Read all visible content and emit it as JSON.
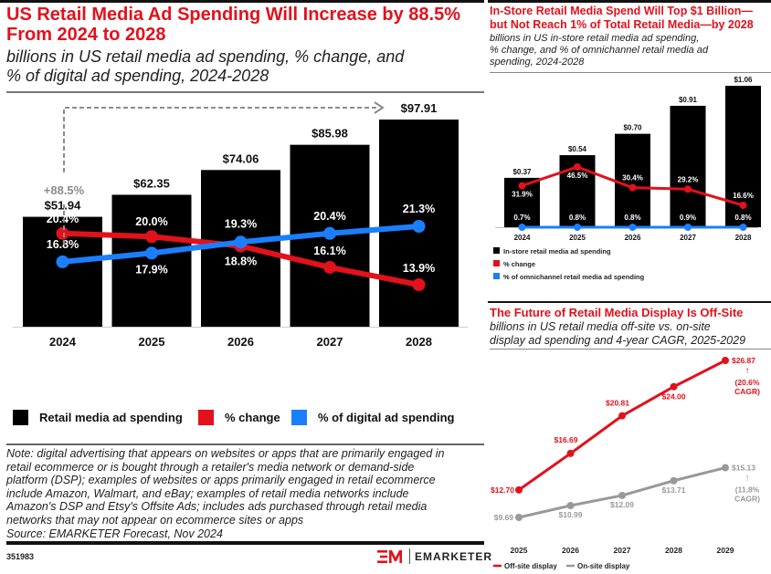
{
  "left": {
    "title": "US Retail Media Ad Spending Will Increase by 88.5% From 2024 to 2028",
    "title_line1": "US Retail Media Ad Spending Will Increase by 88.5%",
    "title_line2": "From 2024 to 2028",
    "subtitle_line1": "billions in US retail media ad spending, % change, and",
    "subtitle_line2": "% of digital ad spending, 2024-2028",
    "note_lines": [
      "Note: digital advertising that appears on websites or apps that are primarily engaged in",
      "retail ecommerce or is bought through a retailer's media network or demand-side",
      "platform (DSP); examples of websites or apps primarily engaged in retail ecommerce",
      "include Amazon, Walmart, and eBay; examples of retail media networks include",
      "Amazon's DSP and Etsy's Offsite Ads; includes ads purchased through retail media",
      "networks that may not appear on ecommerce sites or apps",
      "Source: EMARKETER Forecast, Nov 2024"
    ],
    "chart_id": "351983"
  },
  "right_top": {
    "title_line1": "In-Store Retail Media Spend Will Top $1 Billion—",
    "title_line2": "but Not Reach 1% of Total Retail Media—by 2028",
    "subtitle_line1": "billions in US in-store retail media ad spending,",
    "subtitle_line2": "% change, and % of omnichannel retail media ad",
    "subtitle_line3": "spending, 2024-2028"
  },
  "right_bottom": {
    "title": "The Future of Retail Media Display Is Off-Site",
    "subtitle_line1": "billions in US retail media off-site vs. on-site",
    "subtitle_line2": "display ad spending and 4-year CAGR, 2025-2029"
  },
  "logo": {
    "mark": "EM",
    "text": "EMARKETER"
  },
  "colors": {
    "red": "#e2111b",
    "blue": "#1a7fff",
    "black": "#000000",
    "gray": "#999999",
    "annotation_gray": "#8c8c8c"
  },
  "chart_data": [
    {
      "type": "bar",
      "title": "US Retail Media Ad Spending Will Increase by 88.5% From 2024 to 2028",
      "categories": [
        "2024",
        "2025",
        "2026",
        "2027",
        "2028"
      ],
      "series": [
        {
          "name": "Retail media ad spending",
          "kind": "bar",
          "values": [
            51.94,
            62.35,
            74.06,
            85.98,
            97.91
          ],
          "labels": [
            "$51.94",
            "$62.35",
            "$74.06",
            "$85.98",
            "$97.91"
          ]
        },
        {
          "name": "% change",
          "kind": "line",
          "values": [
            20.4,
            20.0,
            18.8,
            16.1,
            13.9
          ],
          "labels": [
            "20.4%",
            "20.0%",
            "18.8%",
            "16.1%",
            "13.9%"
          ]
        },
        {
          "name": "% of digital ad spending",
          "kind": "line",
          "values": [
            16.8,
            17.9,
            19.3,
            20.4,
            21.3
          ],
          "labels": [
            "16.8%",
            "17.9%",
            "19.3%",
            "20.4%",
            "21.3%"
          ]
        }
      ],
      "annotation": "+88.5%",
      "legend": [
        "Retail media ad spending",
        "% change",
        "% of digital ad spending"
      ],
      "legend_position": "bottom",
      "grid": false
    },
    {
      "type": "bar",
      "title": "In-Store Retail Media Spend Will Top $1 Billion—but Not Reach 1% of Total Retail Media—by 2028",
      "categories": [
        "2024",
        "2025",
        "2026",
        "2027",
        "2028"
      ],
      "series": [
        {
          "name": "In-store retail media ad spending",
          "kind": "bar",
          "values": [
            0.37,
            0.54,
            0.7,
            0.91,
            1.06
          ],
          "labels": [
            "$0.37",
            "$0.54",
            "$0.70",
            "$0.91",
            "$1.06"
          ]
        },
        {
          "name": "% change",
          "kind": "line",
          "values": [
            31.9,
            46.5,
            30.4,
            29.2,
            16.6
          ],
          "labels": [
            "31.9%",
            "46.5%",
            "30.4%",
            "29.2%",
            "16.6%"
          ]
        },
        {
          "name": "% of omnichannel retail media ad spending",
          "kind": "line",
          "values": [
            0.7,
            0.8,
            0.8,
            0.9,
            0.8
          ],
          "labels": [
            "0.7%",
            "0.8%",
            "0.8%",
            "0.9%",
            "0.8%"
          ]
        }
      ],
      "legend": [
        "In-store retail media ad spending",
        "% change",
        "% of omnichannel retail media ad spending"
      ],
      "legend_position": "bottom",
      "grid": false
    },
    {
      "type": "line",
      "title": "The Future of Retail Media Display Is Off-Site",
      "categories": [
        "2025",
        "2026",
        "2027",
        "2028",
        "2029"
      ],
      "series": [
        {
          "name": "Off-site display",
          "values": [
            12.7,
            16.69,
            20.81,
            24.0,
            26.87
          ],
          "labels": [
            "$12.70",
            "$16.69",
            "$20.81",
            "$24.00",
            "$26.87"
          ],
          "cagr_label_1": "(20.6%",
          "cagr_label_2": "CAGR)"
        },
        {
          "name": "On-site display",
          "values": [
            9.69,
            10.99,
            12.09,
            13.71,
            15.13
          ],
          "labels": [
            "$9.69",
            "$10.99",
            "$12.09",
            "$13.71",
            "$15.13"
          ],
          "cagr_label_1": "(11.8%",
          "cagr_label_2": "CAGR)"
        }
      ],
      "legend": [
        "Off-site display",
        "On-site display"
      ],
      "legend_position": "bottom",
      "grid": false
    }
  ]
}
